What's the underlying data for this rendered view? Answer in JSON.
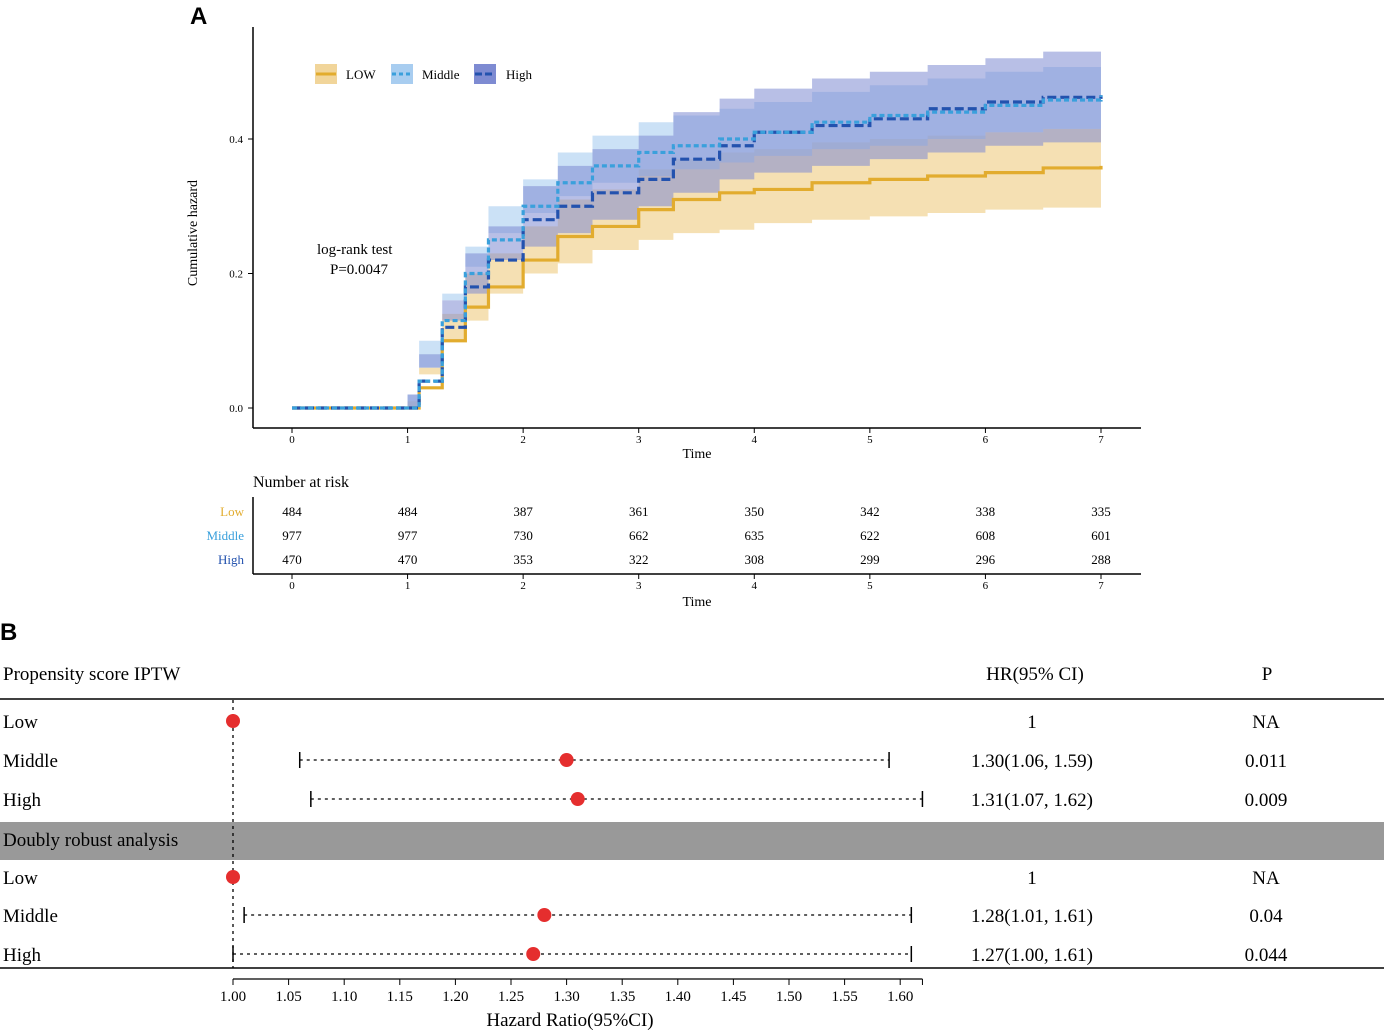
{
  "panel_labels": [
    "A",
    "B"
  ],
  "colors": {
    "low": "#E2AC2E",
    "middle": "#3AA0DC",
    "high": "#2352AE",
    "low_band": "#F1D59A",
    "middle_band": "#A8CDF0",
    "high_band": "#7E8BD2",
    "point": "#E52E2E",
    "gray_band": "#999999"
  },
  "chart_data": [
    {
      "type": "line",
      "panel": "A",
      "title": "",
      "xlabel": "Time",
      "ylabel": "Cumulative hazard",
      "xlim": [
        -0.33,
        7.33
      ],
      "ylim": [
        -0.03,
        0.57
      ],
      "x_ticks": [
        0,
        1,
        2,
        3,
        4,
        5,
        6,
        7
      ],
      "y_ticks": [
        0.0,
        0.2,
        0.4
      ],
      "y_tick_labels": [
        "0.0",
        "0.2",
        "0.4"
      ],
      "legend": {
        "position": "top-left",
        "entries": [
          {
            "label": "LOW",
            "key": "low"
          },
          {
            "label": "Middle",
            "key": "middle"
          },
          {
            "label": "High",
            "key": "high"
          }
        ]
      },
      "annotation": {
        "line1": "log-rank test",
        "line2": "P=0.0047"
      },
      "series": [
        {
          "name": "Low",
          "key": "low",
          "x": [
            0,
            1,
            1.1,
            1.3,
            1.5,
            1.7,
            2.0,
            2.3,
            2.6,
            3.0,
            3.3,
            3.7,
            4.0,
            4.5,
            5.0,
            5.5,
            6.0,
            6.5,
            7.0
          ],
          "y": [
            0,
            0,
            0.03,
            0.1,
            0.15,
            0.18,
            0.22,
            0.255,
            0.27,
            0.295,
            0.31,
            0.32,
            0.325,
            0.335,
            0.34,
            0.345,
            0.35,
            0.357,
            0.36
          ],
          "lower": [
            0,
            0,
            0.01,
            0.06,
            0.1,
            0.13,
            0.17,
            0.2,
            0.215,
            0.235,
            0.25,
            0.26,
            0.265,
            0.275,
            0.28,
            0.285,
            0.29,
            0.295,
            0.298
          ],
          "upper": [
            0,
            0,
            0.05,
            0.14,
            0.2,
            0.23,
            0.27,
            0.31,
            0.325,
            0.355,
            0.37,
            0.38,
            0.385,
            0.395,
            0.4,
            0.405,
            0.41,
            0.415,
            0.42
          ]
        },
        {
          "name": "Middle",
          "key": "middle",
          "x": [
            0,
            1,
            1.1,
            1.3,
            1.5,
            1.7,
            2.0,
            2.3,
            2.6,
            3.0,
            3.3,
            3.7,
            4.0,
            4.5,
            5.0,
            5.5,
            6.0,
            6.5,
            7.0
          ],
          "y": [
            0,
            0,
            0.04,
            0.13,
            0.2,
            0.25,
            0.3,
            0.335,
            0.36,
            0.38,
            0.39,
            0.4,
            0.41,
            0.425,
            0.435,
            0.44,
            0.45,
            0.458,
            0.465
          ],
          "lower": [
            0,
            0,
            0.02,
            0.1,
            0.16,
            0.21,
            0.26,
            0.29,
            0.315,
            0.335,
            0.345,
            0.355,
            0.365,
            0.375,
            0.385,
            0.39,
            0.4,
            0.41,
            0.415
          ],
          "upper": [
            0,
            0,
            0.06,
            0.17,
            0.24,
            0.3,
            0.34,
            0.38,
            0.405,
            0.425,
            0.435,
            0.445,
            0.455,
            0.47,
            0.48,
            0.49,
            0.5,
            0.507,
            0.515
          ]
        },
        {
          "name": "High",
          "key": "high",
          "x": [
            0,
            1,
            1.1,
            1.3,
            1.5,
            1.7,
            2.0,
            2.3,
            2.6,
            3.0,
            3.3,
            3.7,
            4.0,
            4.5,
            5.0,
            5.5,
            6.0,
            6.5,
            7.0
          ],
          "y": [
            0,
            0,
            0.04,
            0.12,
            0.18,
            0.22,
            0.28,
            0.3,
            0.32,
            0.34,
            0.37,
            0.39,
            0.41,
            0.42,
            0.43,
            0.445,
            0.455,
            0.462,
            0.465
          ],
          "lower": [
            0,
            0,
            0.02,
            0.08,
            0.13,
            0.17,
            0.22,
            0.24,
            0.26,
            0.28,
            0.3,
            0.32,
            0.34,
            0.35,
            0.36,
            0.37,
            0.38,
            0.39,
            0.395
          ],
          "upper": [
            0,
            0,
            0.06,
            0.16,
            0.23,
            0.27,
            0.33,
            0.36,
            0.385,
            0.405,
            0.44,
            0.46,
            0.475,
            0.49,
            0.5,
            0.51,
            0.52,
            0.53,
            0.535
          ]
        }
      ]
    },
    {
      "type": "table",
      "panel": "A",
      "title": "Number at risk",
      "xlabel": "Time",
      "x_ticks": [
        0,
        1,
        2,
        3,
        4,
        5,
        6,
        7
      ],
      "rows": [
        {
          "label": "Low",
          "key": "low",
          "values": [
            484,
            484,
            387,
            361,
            350,
            342,
            338,
            335
          ]
        },
        {
          "label": "Middle",
          "key": "middle",
          "values": [
            977,
            977,
            730,
            662,
            635,
            622,
            608,
            601
          ]
        },
        {
          "label": "High",
          "key": "high",
          "values": [
            470,
            470,
            353,
            322,
            308,
            299,
            296,
            288
          ]
        }
      ]
    },
    {
      "type": "scatter",
      "subtype": "forest",
      "panel": "B",
      "xlabel": "Hazard Ratio(95%CI)",
      "xlim": [
        1.0,
        1.62
      ],
      "reference_line": 1.0,
      "x_ticks": [
        1.0,
        1.05,
        1.1,
        1.15,
        1.2,
        1.25,
        1.3,
        1.35,
        1.4,
        1.45,
        1.5,
        1.55,
        1.6
      ],
      "x_tick_labels": [
        "1.00",
        "1.05",
        "1.10",
        "1.15",
        "1.20",
        "1.25",
        "1.30",
        "1.35",
        "1.40",
        "1.45",
        "1.50",
        "1.55",
        "1.60"
      ],
      "columns": {
        "label": "Propensity score IPTW",
        "hr": "HR(95% CI)",
        "p": "P"
      },
      "groups": [
        {
          "title": "Propensity score IPTW",
          "rows": [
            {
              "label": "Low",
              "hr": 1.0,
              "lower": null,
              "upper": null,
              "hr_text": "1",
              "p": "NA"
            },
            {
              "label": "Middle",
              "hr": 1.3,
              "lower": 1.06,
              "upper": 1.59,
              "hr_text": "1.30(1.06, 1.59)",
              "p": "0.011"
            },
            {
              "label": "High",
              "hr": 1.31,
              "lower": 1.07,
              "upper": 1.62,
              "hr_text": "1.31(1.07, 1.62)",
              "p": "0.009"
            }
          ]
        },
        {
          "title": "Doubly robust analysis",
          "rows": [
            {
              "label": "Low",
              "hr": 1.0,
              "lower": null,
              "upper": null,
              "hr_text": "1",
              "p": "NA"
            },
            {
              "label": "Middle",
              "hr": 1.28,
              "lower": 1.01,
              "upper": 1.61,
              "hr_text": "1.28(1.01, 1.61)",
              "p": "0.04"
            },
            {
              "label": "High",
              "hr": 1.27,
              "lower": 1.0,
              "upper": 1.61,
              "hr_text": "1.27(1.00, 1.61)",
              "p": "0.044"
            }
          ]
        }
      ]
    }
  ]
}
